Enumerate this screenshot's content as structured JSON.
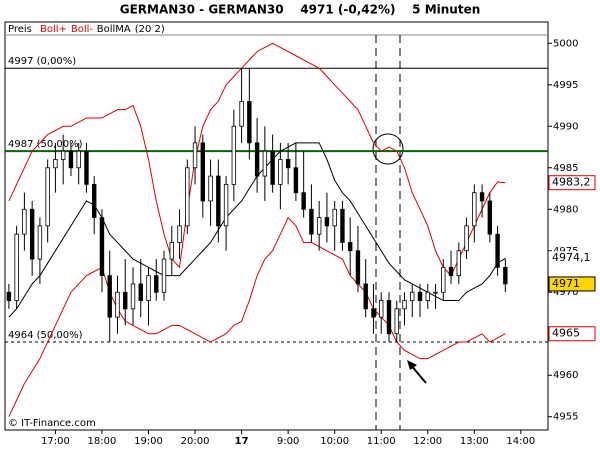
{
  "chart_data": {
    "type": "candlestick",
    "title": "GERMAN30 - GERMAN30    4971 (-0,42%)    5 Minuten",
    "price_name": "Preis",
    "indicator_params": "(20 2)",
    "watermark": "© IT-Finance.com",
    "categories": [
      null,
      null,
      null,
      null,
      null,
      null,
      "17:00",
      null,
      null,
      null,
      null,
      null,
      "18:00",
      null,
      null,
      null,
      null,
      null,
      "19:00",
      null,
      null,
      null,
      null,
      null,
      "20:00",
      null,
      null,
      null,
      null,
      null,
      "17",
      null,
      null,
      null,
      null,
      null,
      "9:00",
      null,
      null,
      null,
      null,
      null,
      "10:00",
      null,
      null,
      null,
      null,
      null,
      "11:00",
      null,
      null,
      null,
      null,
      null,
      "12:00",
      null,
      null,
      null,
      null,
      null,
      "13:00",
      null,
      null,
      null,
      null,
      null,
      "14:00",
      null,
      null,
      null
    ],
    "open": [
      4970,
      4969,
      4977,
      4980,
      4974,
      4978,
      4985,
      4986,
      4987,
      4985,
      4987,
      4983,
      4979,
      4972,
      4967,
      4970,
      4968,
      4971,
      4969,
      4972,
      4970,
      4974,
      4976,
      4978,
      4985,
      4988,
      4981,
      4984,
      4978,
      4983,
      4990,
      4993,
      4988,
      4984,
      4987,
      4983,
      4986,
      4985,
      4982,
      4980,
      4977,
      4979,
      4978,
      4980,
      4976,
      4975,
      4971,
      4968,
      4967,
      4969,
      4965,
      4968,
      4969,
      4970,
      4969,
      4970,
      4970,
      4973,
      4972,
      4975,
      4978,
      4982,
      4981,
      4977,
      4973,
      null,
      null,
      null,
      null,
      null
    ],
    "high": [
      4971,
      4978,
      4982,
      4981,
      4979,
      4986,
      4988,
      4989,
      4988,
      4988,
      4988,
      4984,
      4980,
      4975,
      4972,
      4974,
      4973,
      4974,
      4973,
      4974,
      4975,
      4978,
      4980,
      4986,
      4990,
      4989,
      4986,
      4986,
      4984,
      4992,
      4997,
      4997,
      4991,
      4990,
      4989,
      4988,
      4988,
      4988,
      4987,
      4983,
      4981,
      4982,
      4981,
      4981,
      4979,
      4978,
      4974,
      4971,
      4970,
      4970,
      4969,
      4970,
      4971,
      4971,
      4971,
      4971,
      4974,
      4975,
      4976,
      4979,
      4983,
      4983,
      4982,
      4978,
      4974,
      null,
      null,
      null,
      null,
      null
    ],
    "low": [
      4968,
      4968,
      4975,
      4972,
      4971,
      4976,
      4982,
      4983,
      4984,
      4983,
      4982,
      4977,
      4970,
      4964,
      4965,
      4966,
      4966,
      4967,
      4966,
      4969,
      4969,
      4972,
      4974,
      4977,
      4983,
      4979,
      4978,
      4976,
      4975,
      4981,
      4988,
      4986,
      4982,
      4981,
      4982,
      4980,
      4983,
      4981,
      4979,
      4976,
      4975,
      4976,
      4975,
      4975,
      4972,
      4970,
      4967,
      4965,
      4965,
      4964,
      4964,
      4966,
      4967,
      4967,
      4968,
      4968,
      4969,
      4971,
      4971,
      4974,
      4976,
      4979,
      4976,
      4972,
      4970,
      null,
      null,
      null,
      null,
      null
    ],
    "close": [
      4969,
      4977,
      4980,
      4974,
      4978,
      4985,
      4986,
      4987,
      4985,
      4987,
      4983,
      4979,
      4972,
      4967,
      4970,
      4968,
      4971,
      4969,
      4972,
      4970,
      4974,
      4976,
      4978,
      4985,
      4988,
      4981,
      4984,
      4978,
      4983,
      4990,
      4993,
      4988,
      4984,
      4987,
      4983,
      4986,
      4985,
      4982,
      4980,
      4977,
      4979,
      4978,
      4980,
      4976,
      4975,
      4971,
      4968,
      4967,
      4969,
      4965,
      4968,
      4969,
      4970,
      4969,
      4970,
      4970,
      4973,
      4972,
      4975,
      4978,
      4982,
      4981,
      4977,
      4973,
      4971,
      null,
      null,
      null,
      null,
      null
    ],
    "series": [
      {
        "name": "Boll+",
        "color": "#e00000",
        "values": [
          4981,
          4983,
          4985,
          4987,
          4988,
          4989,
          4989.5,
          4990,
          4990,
          4990.5,
          4991,
          4991,
          4991,
          4991.5,
          4992,
          4992,
          4992.5,
          4990,
          4986,
          4981,
          4977,
          4974,
          4973,
          4980,
          4986,
          4990,
          4992,
          4993,
          4995,
          4996,
          4997,
          4998,
          4999,
          4999.5,
          5000,
          4999.5,
          4999,
          4998.5,
          4998,
          4997.5,
          4997,
          4996,
          4995,
          4994,
          4993,
          4992,
          4990,
          4988,
          4987,
          4987.5,
          4987,
          4985,
          4982,
          4980,
          4978,
          4975,
          4973,
          4972,
          4974,
          4976,
          4978,
          4980,
          4982,
          4983.3,
          4983.2,
          null,
          null,
          null,
          null,
          null
        ]
      },
      {
        "name": "Boll-",
        "color": "#e00000",
        "values": [
          4955,
          4957,
          4959,
          4960.5,
          4962,
          4964,
          4966,
          4968,
          4970,
          4971,
          4972,
          4972.5,
          4973,
          4970,
          4968,
          4966.5,
          4966,
          4965.5,
          4965,
          4965,
          4965.5,
          4966,
          4966,
          4965.5,
          4965,
          4964.5,
          4964,
          4964.5,
          4965,
          4966,
          4966.5,
          4969,
          4972,
          4974,
          4975,
          4977,
          4979,
          4978,
          4976,
          4976,
          4975.5,
          4975,
          4974.5,
          4974,
          4972,
          4971,
          4970,
          4968,
          4967,
          4966,
          4964,
          4963,
          4962.5,
          4962,
          4962,
          4962.5,
          4963,
          4963.5,
          4964,
          4964,
          4964.5,
          4965,
          4964,
          4964.5,
          4965,
          null,
          null,
          null,
          null,
          null
        ]
      },
      {
        "name": "BollMA",
        "color": "#000000",
        "values": [
          4967,
          4968,
          4969.5,
          4971,
          4972,
          4973.5,
          4975,
          4976.5,
          4978,
          4979.5,
          4981,
          4980.5,
          4979,
          4977,
          4976,
          4975,
          4974,
          4973.5,
          4973,
          4972.5,
          4972,
          4972,
          4972,
          4973,
          4974,
          4975,
          4976,
          4977.5,
          4979,
          4980,
          4981,
          4982.5,
          4984,
          4985,
          4986,
          4987,
          4987.5,
          4988,
          4988,
          4988,
          4988,
          4986,
          4983.5,
          4982,
          4981,
          4979.5,
          4978,
          4976.5,
          4975,
          4973.5,
          4972.5,
          4971.5,
          4971,
          4970.5,
          4970,
          4969.5,
          4969,
          4969,
          4969,
          4970,
          4970.5,
          4971,
          4972,
          4973.5,
          4974.1,
          null,
          null,
          null,
          null,
          null
        ]
      }
    ],
    "ylim": [
      4953.4,
      5001
    ],
    "yticks": [
      4955,
      4960,
      4965,
      4970,
      4975,
      4980,
      4985,
      4990,
      4995,
      5000
    ],
    "levels": [
      {
        "value": 4997,
        "label": "4997 (0,00%)",
        "color": "#000000",
        "dashed": false
      },
      {
        "value": 4987,
        "label": "4987 (50,00%)",
        "color": "#006400",
        "dashed": false
      },
      {
        "value": 4964,
        "label": "4964 (50,00%)",
        "color": "#000000",
        "dashed": true
      }
    ],
    "price_labels": [
      {
        "value": 4983.2,
        "label": "4983,2",
        "color": "#e00000",
        "background": "#ffffff"
      },
      {
        "value": 4974.1,
        "label": "4974,1",
        "color": "#000000",
        "background": "#ffffff"
      },
      {
        "value": 4971,
        "label": "4971",
        "color": "#000000",
        "background": "#ffd700"
      },
      {
        "value": 4965,
        "label": "4965",
        "color": "#e00000",
        "background": "#ffffff"
      }
    ],
    "up_color": "#ffffff",
    "down_color": "#000000"
  }
}
